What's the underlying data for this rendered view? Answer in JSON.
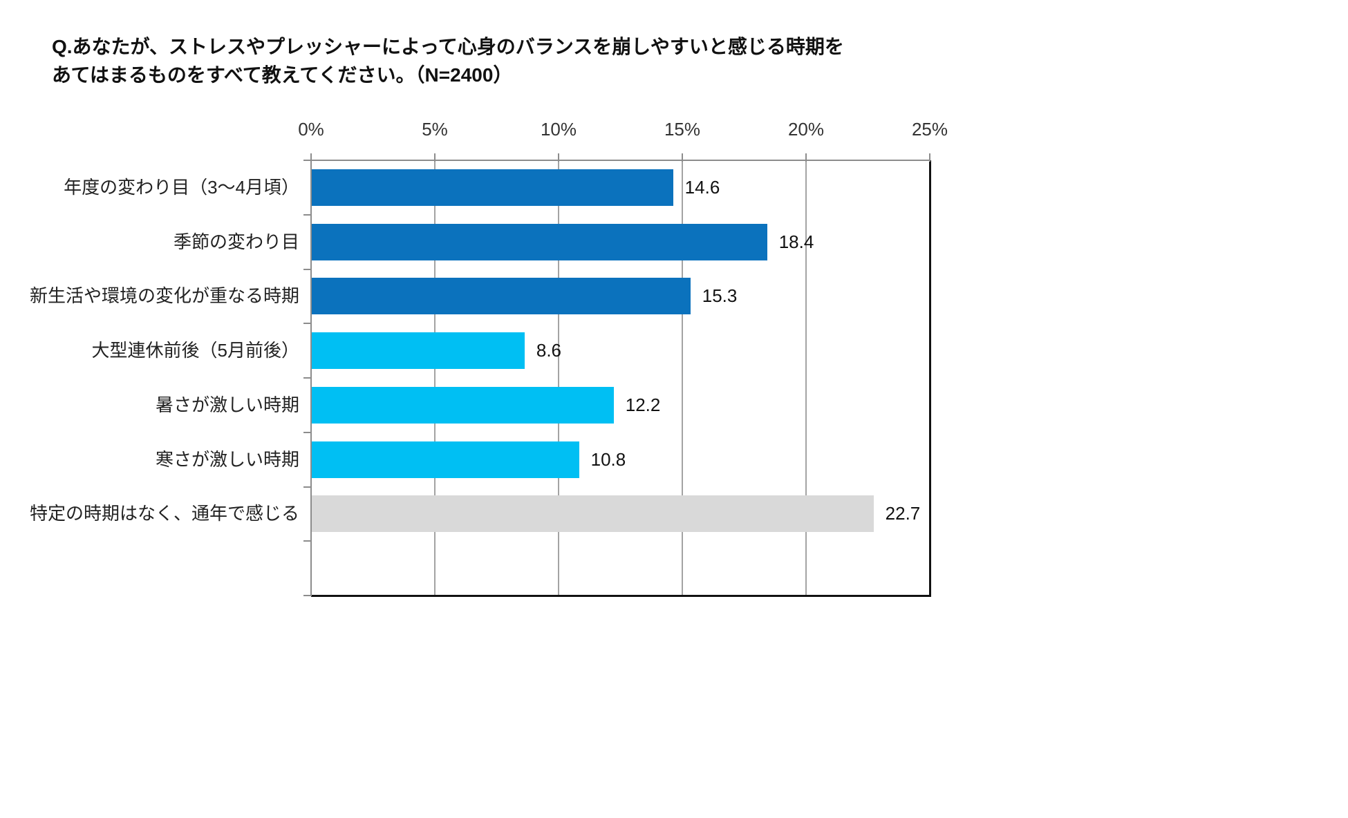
{
  "title": {
    "line1": "Q.あなたが、ストレスやプレッシャーによって心身のバランスを崩しやすいと感じる時期を",
    "line2": "あてはまるものをすべて教えてください。（N=2400）"
  },
  "chart_data": {
    "type": "bar",
    "orientation": "horizontal",
    "title": "ストレスやプレッシャーによって心身のバランスを崩しやすいと感じる時期",
    "sample_note": "N=2400",
    "categories": [
      "年度の変わり目（3〜4月頃）",
      "季節の変わり目",
      "新生活や環境の変化が重なる時期",
      "大型連休前後（5月前後）",
      "暑さが激しい時期",
      "寒さが激しい時期",
      "特定の時期はなく、通年で感じる"
    ],
    "values": [
      14.6,
      18.4,
      15.3,
      8.6,
      12.2,
      10.8,
      22.7
    ],
    "value_labels": [
      "14.6",
      "18.4",
      "15.3",
      "8.6",
      "12.2",
      "10.8",
      "22.7"
    ],
    "bar_colors": [
      "#0b72bd",
      "#0b72bd",
      "#0b72bd",
      "#00bff3",
      "#00bff3",
      "#00bff3",
      "#d9d9d9"
    ],
    "x_axis": {
      "position": "top",
      "tick_labels": [
        "0%",
        "5%",
        "10%",
        "15%",
        "20%",
        "25%"
      ],
      "min": 0,
      "max": 25,
      "major_unit": 5
    },
    "grid": true,
    "colors": {
      "grid": "#a3a3a3",
      "axis_gray": "#8c8c8c",
      "border_black": "#111111",
      "text": "#111111"
    }
  }
}
